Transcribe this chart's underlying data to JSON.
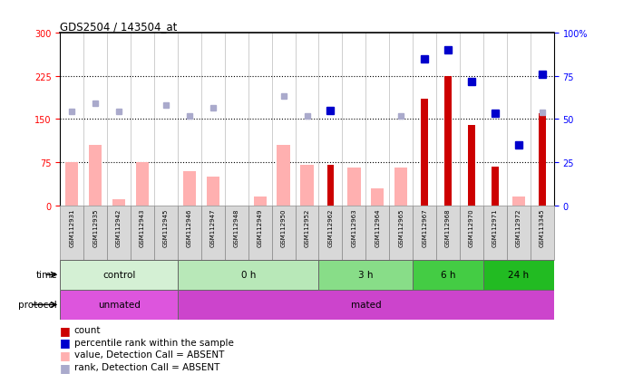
{
  "title": "GDS2504 / 143504_at",
  "samples": [
    "GSM112931",
    "GSM112935",
    "GSM112942",
    "GSM112943",
    "GSM112945",
    "GSM112946",
    "GSM112947",
    "GSM112948",
    "GSM112949",
    "GSM112950",
    "GSM112952",
    "GSM112962",
    "GSM112963",
    "GSM112964",
    "GSM112965",
    "GSM112967",
    "GSM112968",
    "GSM112970",
    "GSM112971",
    "GSM112972",
    "GSM113345"
  ],
  "count_values": [
    null,
    null,
    null,
    null,
    null,
    null,
    null,
    null,
    null,
    null,
    null,
    70,
    null,
    null,
    null,
    185,
    225,
    140,
    68,
    null,
    160
  ],
  "count_color": "#cc0000",
  "value_absent": [
    75,
    105,
    10,
    75,
    null,
    60,
    50,
    null,
    15,
    105,
    70,
    null,
    65,
    30,
    65,
    null,
    null,
    null,
    null,
    15,
    null
  ],
  "value_absent_color": "#ffb0b0",
  "rank_absent_vals": [
    163,
    178,
    163,
    null,
    175,
    155,
    170,
    null,
    null,
    190,
    155,
    165,
    null,
    null,
    155,
    null,
    null,
    null,
    null,
    null,
    162
  ],
  "rank_absent_color": "#aaaacc",
  "percentile_rank": [
    null,
    null,
    null,
    null,
    null,
    null,
    null,
    null,
    null,
    null,
    null,
    165,
    null,
    null,
    null,
    255,
    270,
    215,
    160,
    105,
    228
  ],
  "percentile_rank_color": "#0000cc",
  "ylim_left": [
    0,
    300
  ],
  "ylim_right": [
    0,
    100
  ],
  "yticks_left": [
    0,
    75,
    150,
    225,
    300
  ],
  "yticks_right": [
    0,
    25,
    50,
    75,
    100
  ],
  "hlines": [
    75,
    150,
    225
  ],
  "time_groups": [
    {
      "label": "control",
      "start": 0,
      "end": 5,
      "color": "#d4f0d4"
    },
    {
      "label": "0 h",
      "start": 5,
      "end": 11,
      "color": "#b8e8b8"
    },
    {
      "label": "3 h",
      "start": 11,
      "end": 15,
      "color": "#88dd88"
    },
    {
      "label": "6 h",
      "start": 15,
      "end": 18,
      "color": "#44cc44"
    },
    {
      "label": "24 h",
      "start": 18,
      "end": 21,
      "color": "#22bb22"
    }
  ],
  "protocol_groups": [
    {
      "label": "unmated",
      "start": 0,
      "end": 5,
      "color": "#dd55dd"
    },
    {
      "label": "mated",
      "start": 5,
      "end": 21,
      "color": "#cc44cc"
    }
  ],
  "bg_color": "#ffffff",
  "plot_bg_color": "#ffffff",
  "bar_width": 0.55
}
